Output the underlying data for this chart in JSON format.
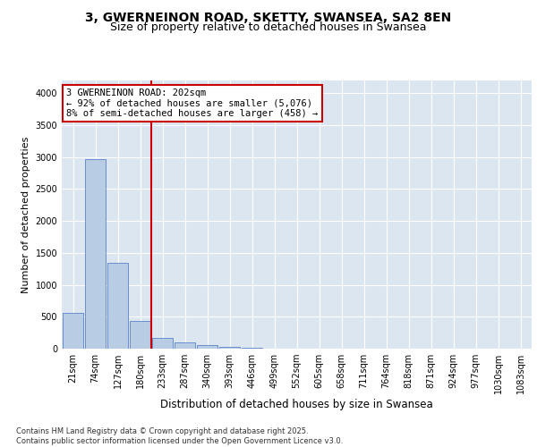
{
  "title1": "3, GWERNEINON ROAD, SKETTY, SWANSEA, SA2 8EN",
  "title2": "Size of property relative to detached houses in Swansea",
  "xlabel": "Distribution of detached houses by size in Swansea",
  "ylabel": "Number of detached properties",
  "categories": [
    "21sqm",
    "74sqm",
    "127sqm",
    "180sqm",
    "233sqm",
    "287sqm",
    "340sqm",
    "393sqm",
    "446sqm",
    "499sqm",
    "552sqm",
    "605sqm",
    "658sqm",
    "711sqm",
    "764sqm",
    "818sqm",
    "871sqm",
    "924sqm",
    "977sqm",
    "1030sqm",
    "1083sqm"
  ],
  "values": [
    560,
    2970,
    1350,
    430,
    175,
    100,
    55,
    35,
    15,
    5,
    2,
    1,
    0,
    0,
    0,
    0,
    0,
    0,
    0,
    0,
    0
  ],
  "bar_color": "#b8cce4",
  "bar_edge_color": "#4472c4",
  "background_color": "#dce6f1",
  "grid_color": "#ffffff",
  "property_line_x": 3.5,
  "property_line_color": "#cc0000",
  "annotation_text": "3 GWERNEINON ROAD: 202sqm\n← 92% of detached houses are smaller (5,076)\n8% of semi-detached houses are larger (458) →",
  "annotation_box_color": "#cc0000",
  "ylim": [
    0,
    4200
  ],
  "yticks": [
    0,
    500,
    1000,
    1500,
    2000,
    2500,
    3000,
    3500,
    4000
  ],
  "footer": "Contains HM Land Registry data © Crown copyright and database right 2025.\nContains public sector information licensed under the Open Government Licence v3.0.",
  "title_fontsize": 10,
  "subtitle_fontsize": 9,
  "tick_fontsize": 7,
  "ylabel_fontsize": 8,
  "xlabel_fontsize": 8.5,
  "annotation_fontsize": 7.5,
  "footer_fontsize": 6
}
